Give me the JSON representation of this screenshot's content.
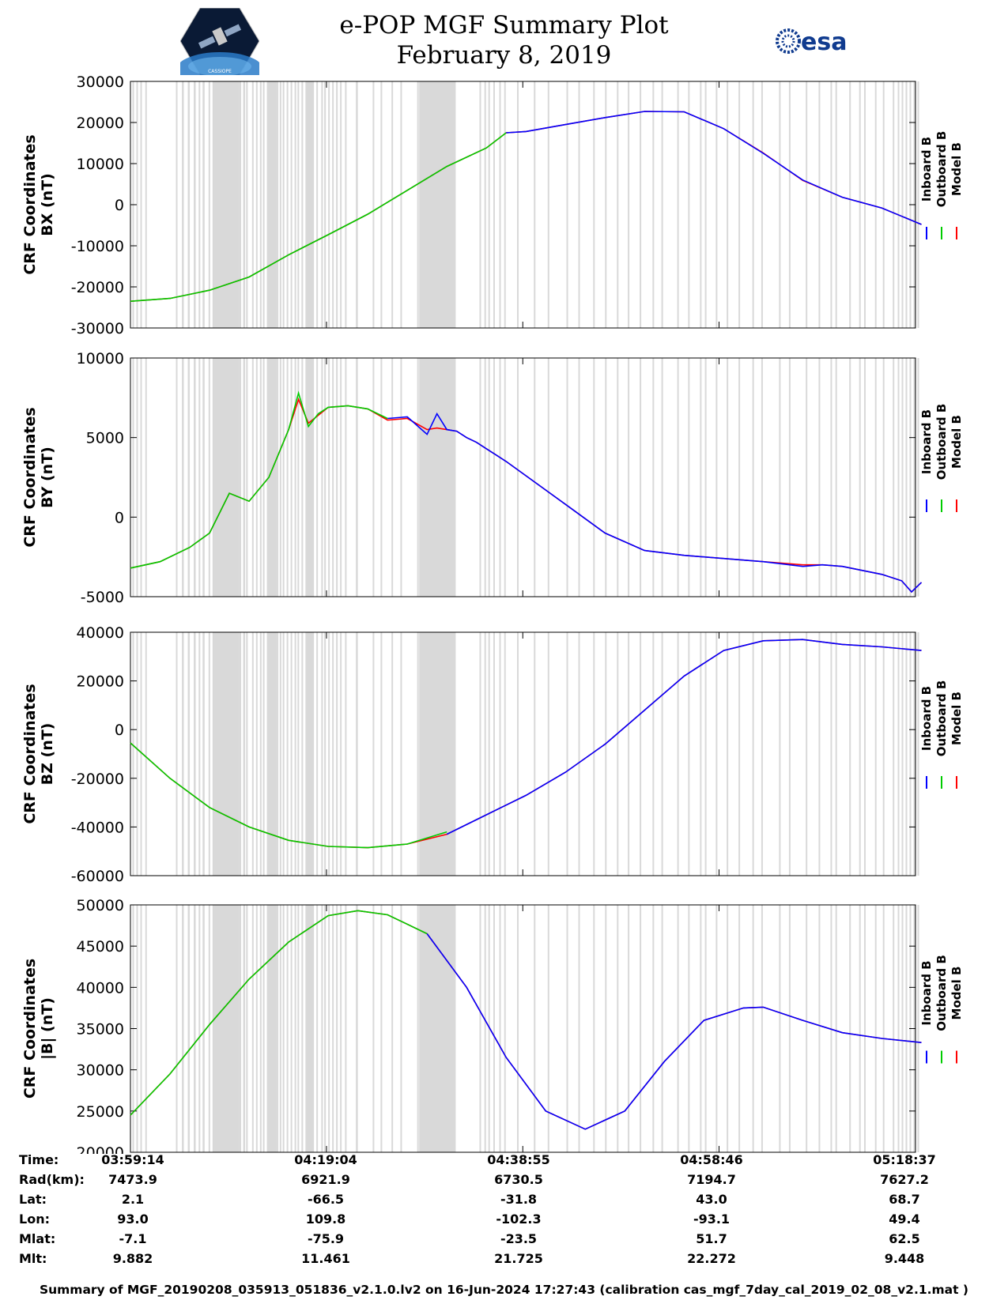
{
  "header": {
    "title_line1": "e-POP MGF Summary Plot",
    "title_line2": "February 8, 2019",
    "left_logo_text": "CASSIOPE",
    "right_logo_text": "esa"
  },
  "colors": {
    "inboard": "#0000ff",
    "outboard": "#00cc00",
    "model": "#ff0000",
    "gap": "#d9d9d9"
  },
  "chart_data": [
    {
      "type": "line",
      "id": "bx",
      "ylabel_line1": "CRF Coordinates",
      "ylabel_line2": "BX (nT)",
      "ylim": [
        -30000,
        30000
      ],
      "yticks": [
        -30000,
        -20000,
        -10000,
        0,
        10000,
        20000,
        30000
      ],
      "legend": [
        "Inboard B",
        "Outboard B",
        "Model B"
      ],
      "x_minutes": [
        0,
        4,
        8,
        12,
        16,
        20,
        24,
        28,
        32,
        36,
        38,
        40,
        44,
        48,
        52,
        56,
        60,
        64,
        68,
        72,
        76,
        80
      ],
      "series": [
        {
          "name": "Outboard B",
          "color_key": "outboard",
          "values": [
            -23500,
            -22800,
            -20800,
            -17600,
            -12200,
            -7300,
            -2300,
            3500,
            9300,
            13800,
            17500,
            null,
            null,
            null,
            null,
            null,
            null,
            null,
            null,
            null,
            null,
            null
          ]
        },
        {
          "name": "Inboard B",
          "color_key": "inboard",
          "values": [
            null,
            null,
            null,
            null,
            null,
            null,
            null,
            null,
            null,
            null,
            17500,
            17800,
            19500,
            21200,
            22700,
            22600,
            18500,
            12500,
            6000,
            1800,
            -800,
            -4800
          ]
        },
        {
          "name": "Model B",
          "color_key": "model",
          "values": [
            -23500,
            -22800,
            -20800,
            -17600,
            -12200,
            -7300,
            -2300,
            3500,
            9300,
            13800,
            17500,
            17800,
            19500,
            21200,
            22700,
            22600,
            18500,
            12600,
            5900,
            1800,
            -800,
            -4800
          ]
        }
      ]
    },
    {
      "type": "line",
      "id": "by",
      "ylabel_line1": "CRF Coordinates",
      "ylabel_line2": "BY (nT)",
      "ylim": [
        -5000,
        10000
      ],
      "yticks": [
        -5000,
        0,
        5000,
        10000
      ],
      "legend": [
        "Inboard B",
        "Outboard B",
        "Model B"
      ],
      "x_minutes": [
        0,
        3,
        6,
        8,
        10,
        12,
        14,
        15,
        16,
        17,
        18,
        19,
        20,
        22,
        24,
        26,
        28,
        30,
        31,
        32,
        33,
        34,
        35,
        36,
        37,
        38,
        40,
        44,
        48,
        52,
        56,
        60,
        64,
        68,
        70,
        72,
        76,
        78,
        79,
        80
      ],
      "series": [
        {
          "name": "Outboard B",
          "color_key": "outboard",
          "values": [
            -3200,
            -2800,
            -1900,
            -1000,
            1500,
            1000,
            2500,
            4000,
            5500,
            7800,
            5700,
            6500,
            6900,
            7000,
            6800,
            6200,
            null,
            null,
            null,
            null,
            null,
            null,
            null,
            null,
            null,
            null,
            null,
            null,
            null,
            null,
            null,
            null,
            null,
            null,
            null,
            null,
            null,
            null,
            null,
            null
          ]
        },
        {
          "name": "Inboard B",
          "color_key": "inboard",
          "values": [
            null,
            null,
            null,
            null,
            null,
            null,
            null,
            null,
            null,
            null,
            null,
            null,
            null,
            null,
            null,
            6200,
            6300,
            5200,
            6500,
            5500,
            5400,
            5000,
            4700,
            4300,
            3900,
            3500,
            2600,
            800,
            -1000,
            -2100,
            -2400,
            -2600,
            -2800,
            -3100,
            -3000,
            -3100,
            -3600,
            -4000,
            -4700,
            -4100
          ]
        },
        {
          "name": "Model B",
          "color_key": "model",
          "values": [
            -3200,
            -2800,
            -1900,
            -1000,
            1500,
            1000,
            2500,
            4000,
            5500,
            7400,
            5900,
            6400,
            6900,
            7000,
            6800,
            6100,
            6200,
            5500,
            5600,
            5500,
            5400,
            5000,
            4700,
            4300,
            3900,
            3500,
            2600,
            800,
            -1000,
            -2100,
            -2400,
            -2600,
            -2800,
            -3000,
            -3000,
            -3100,
            -3600,
            -4000,
            -4700,
            -4100
          ]
        }
      ]
    },
    {
      "type": "line",
      "id": "bz",
      "ylabel_line1": "CRF Coordinates",
      "ylabel_line2": "BZ (nT)",
      "ylim": [
        -60000,
        40000
      ],
      "yticks": [
        -60000,
        -40000,
        -20000,
        0,
        20000,
        40000
      ],
      "legend": [
        "Inboard B",
        "Outboard B",
        "Model B"
      ],
      "x_minutes": [
        0,
        4,
        8,
        12,
        16,
        20,
        24,
        28,
        32,
        36,
        40,
        44,
        48,
        52,
        56,
        60,
        64,
        68,
        72,
        76,
        80
      ],
      "series": [
        {
          "name": "Outboard B",
          "color_key": "outboard",
          "values": [
            -5500,
            -20000,
            -32000,
            -40000,
            -45500,
            -48000,
            -48500,
            -47000,
            -42000,
            null,
            null,
            null,
            null,
            null,
            null,
            null,
            null,
            null,
            null,
            null,
            null
          ]
        },
        {
          "name": "Inboard B",
          "color_key": "inboard",
          "values": [
            null,
            null,
            null,
            null,
            null,
            null,
            null,
            null,
            -43000,
            -35000,
            -27000,
            -17500,
            -6000,
            8000,
            22000,
            32500,
            36500,
            37000,
            35000,
            34000,
            32500
          ]
        },
        {
          "name": "Model B",
          "color_key": "model",
          "values": [
            -5500,
            -20000,
            -32000,
            -40000,
            -45500,
            -48000,
            -48500,
            -47000,
            -43000,
            -35000,
            -27000,
            -17500,
            -6000,
            8000,
            22000,
            32500,
            36500,
            37000,
            35000,
            34000,
            32500
          ]
        }
      ]
    },
    {
      "type": "line",
      "id": "bmag",
      "ylabel_line1": "CRF Coordinates",
      "ylabel_line2": "|B| (nT)",
      "ylim": [
        20000,
        50000
      ],
      "yticks": [
        20000,
        25000,
        30000,
        35000,
        40000,
        45000,
        50000
      ],
      "legend": [
        "Inboard B",
        "Outboard B",
        "Model B"
      ],
      "x_minutes": [
        0,
        4,
        8,
        12,
        16,
        20,
        23,
        26,
        30,
        34,
        38,
        42,
        46,
        50,
        54,
        58,
        62,
        64,
        68,
        72,
        76,
        80
      ],
      "series": [
        {
          "name": "Outboard B",
          "color_key": "outboard",
          "values": [
            24500,
            29500,
            35500,
            41000,
            45500,
            48700,
            49300,
            48800,
            46500,
            null,
            null,
            null,
            null,
            null,
            null,
            null,
            null,
            null,
            null,
            null,
            null,
            null
          ]
        },
        {
          "name": "Inboard B",
          "color_key": "inboard",
          "values": [
            null,
            null,
            null,
            null,
            null,
            null,
            null,
            null,
            46500,
            40000,
            31500,
            25000,
            22800,
            25000,
            31000,
            36000,
            37500,
            37600,
            36000,
            34500,
            33800,
            33300
          ]
        },
        {
          "name": "Model B",
          "color_key": "model",
          "values": [
            24500,
            29500,
            35500,
            41000,
            45500,
            48700,
            49300,
            48800,
            46500,
            40000,
            31500,
            25000,
            22800,
            25000,
            31000,
            36000,
            37500,
            37600,
            36000,
            34500,
            33800,
            33300
          ]
        }
      ]
    }
  ],
  "gaps_minutes": [
    [
      0.2,
      0.35
    ],
    [
      0.6,
      0.75
    ],
    [
      1.0,
      1.15
    ],
    [
      1.5,
      1.6
    ],
    [
      4.6,
      4.75
    ],
    [
      5.2,
      5.4
    ],
    [
      5.8,
      6.0
    ],
    [
      6.4,
      6.6
    ],
    [
      6.9,
      7.05
    ],
    [
      7.3,
      7.5
    ],
    [
      7.9,
      8.05
    ],
    [
      8.3,
      8.45
    ],
    [
      8.6,
      8.75
    ],
    [
      8.9,
      9.05
    ],
    [
      9.25,
      9.4
    ],
    [
      9.6,
      9.75
    ],
    [
      10.2,
      10.4
    ],
    [
      11.0,
      11.2
    ],
    [
      11.4,
      11.6
    ],
    [
      11.7,
      11.85
    ],
    [
      12.3,
      12.45
    ],
    [
      12.7,
      12.85
    ],
    [
      13.1,
      13.2
    ],
    [
      13.4,
      13.55
    ],
    [
      13.8,
      13.95
    ],
    [
      14.1,
      14.25
    ],
    [
      14.4,
      14.55
    ],
    [
      14.8,
      14.95
    ],
    [
      15.1,
      15.2
    ],
    [
      15.4,
      15.55
    ],
    [
      15.8,
      15.95
    ],
    [
      16.2,
      16.35
    ],
    [
      16.6,
      16.75
    ],
    [
      16.9,
      17.05
    ],
    [
      17.3,
      17.45
    ],
    [
      17.7,
      17.85
    ],
    [
      18.0,
      18.15
    ],
    [
      18.4,
      18.55
    ],
    [
      18.8,
      18.95
    ],
    [
      19.3,
      19.45
    ],
    [
      19.6,
      19.75
    ],
    [
      20.0,
      20.15
    ],
    [
      20.4,
      20.55
    ],
    [
      20.8,
      20.95
    ],
    [
      21.2,
      21.35
    ],
    [
      21.7,
      21.85
    ],
    [
      22.8,
      23.0
    ],
    [
      24.5,
      24.65
    ],
    [
      25.3,
      25.45
    ],
    [
      26.4,
      26.55
    ],
    [
      27.3,
      27.45
    ],
    [
      29.0,
      29.15
    ],
    [
      29.8,
      29.95
    ],
    [
      30.8,
      30.95
    ],
    [
      35.3,
      35.45
    ],
    [
      35.8,
      35.95
    ],
    [
      36.2,
      36.35
    ],
    [
      36.7,
      36.85
    ],
    [
      37.3,
      37.45
    ],
    [
      37.8,
      37.95
    ],
    [
      39.1,
      39.25
    ],
    [
      40.8,
      40.95
    ],
    [
      42.2,
      42.35
    ],
    [
      44.1,
      44.25
    ],
    [
      45.3,
      45.45
    ],
    [
      46.8,
      46.95
    ],
    [
      48.0,
      48.15
    ],
    [
      49.2,
      49.35
    ],
    [
      50.3,
      50.45
    ],
    [
      51.5,
      51.65
    ],
    [
      52.8,
      52.95
    ],
    [
      53.7,
      53.85
    ],
    [
      55.3,
      55.45
    ],
    [
      56.4,
      56.55
    ],
    [
      57.6,
      57.75
    ],
    [
      58.1,
      58.25
    ],
    [
      59.2,
      59.35
    ],
    [
      60.3,
      60.45
    ],
    [
      61.5,
      61.65
    ],
    [
      62.9,
      63.05
    ],
    [
      63.8,
      63.95
    ],
    [
      65.6,
      65.75
    ],
    [
      66.6,
      66.75
    ],
    [
      68.3,
      68.45
    ],
    [
      69.6,
      69.75
    ],
    [
      70.8,
      70.95
    ],
    [
      71.3,
      71.45
    ],
    [
      72.7,
      72.85
    ],
    [
      73.7,
      73.85
    ],
    [
      74.2,
      74.35
    ],
    [
      75.3,
      75.45
    ],
    [
      76.1,
      76.25
    ],
    [
      77.1,
      77.25
    ],
    [
      77.6,
      77.75
    ],
    [
      78.0,
      78.15
    ],
    [
      78.4,
      78.55
    ],
    [
      78.8,
      78.95
    ],
    [
      79.2,
      79.35
    ],
    [
      79.6,
      79.75
    ]
  ],
  "gap_blocks_minutes": [
    [
      8.4,
      11.0
    ],
    [
      13.9,
      14.8
    ],
    [
      17.8,
      18.5
    ],
    [
      29.2,
      32.9
    ]
  ],
  "ephemeris": {
    "labels": [
      "Time:",
      "Rad(km):",
      "Lat:",
      "Lon:",
      "Mlat:",
      "Mlt:"
    ],
    "columns": [
      [
        "03:59:14",
        "7473.9",
        "2.1",
        "93.0",
        "-7.1",
        "9.882"
      ],
      [
        "04:19:04",
        "6921.9",
        "-66.5",
        "109.8",
        "-75.9",
        "11.461"
      ],
      [
        "04:38:55",
        "6730.5",
        "-31.8",
        "-102.3",
        "-23.5",
        "21.725"
      ],
      [
        "04:58:46",
        "7194.7",
        "43.0",
        "-93.1",
        "51.7",
        "22.272"
      ],
      [
        "05:18:37",
        "7627.2",
        "68.7",
        "49.4",
        "62.5",
        "9.448"
      ]
    ]
  },
  "footer": "Summary of MGF_20190208_035913_051836_v2.1.0.lv2 on 16-Jun-2024 17:27:43 (calibration cas_mgf_7day_cal_2019_02_08_v2.1.mat )"
}
